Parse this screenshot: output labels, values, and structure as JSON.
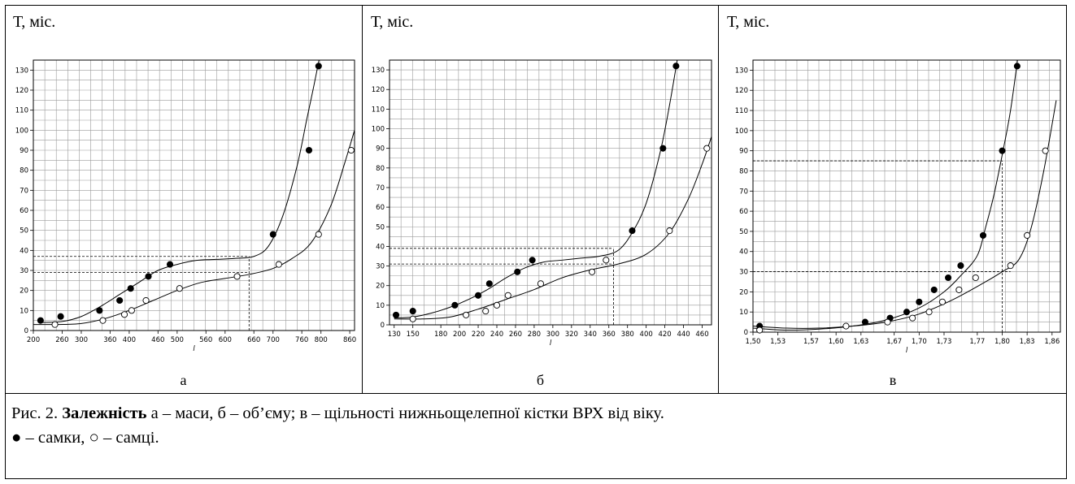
{
  "caption": {
    "line1_prefix": "Рис. 2. ",
    "line1_bold": "Залежність",
    "line1_rest": " а – маси, б – об’єму; в – щільності нижньощелепної кістки ВРХ  від віку.",
    "line2": "● – самки, ○ – самці."
  },
  "chart_data": [
    {
      "type": "scatter",
      "panel_label": "а",
      "ylabel": "Т, міс.",
      "xlabel": "l",
      "xlim": [
        200,
        870
      ],
      "ylim": [
        0,
        135
      ],
      "x_ticks": [
        "200",
        "260",
        "300",
        "360",
        "400",
        "460",
        "500",
        "560",
        "600",
        "660",
        "700",
        "760",
        "800",
        "860"
      ],
      "x_tick_values": [
        200,
        260,
        300,
        360,
        400,
        460,
        500,
        560,
        600,
        660,
        700,
        760,
        800,
        860
      ],
      "y_ticks": [
        0,
        10,
        20,
        30,
        40,
        50,
        60,
        70,
        80,
        90,
        100,
        110,
        120,
        130
      ],
      "grid": true,
      "series": [
        {
          "marker": "filled",
          "x": [
            215,
            257,
            338,
            380,
            403,
            440,
            485,
            700,
            775,
            795
          ],
          "y": [
            5,
            7,
            10,
            15,
            21,
            27,
            33,
            48,
            90,
            132
          ]
        },
        {
          "marker": "open",
          "x": [
            245,
            345,
            390,
            405,
            435,
            505,
            625,
            712,
            795,
            863
          ],
          "y": [
            3,
            5,
            8,
            10,
            15,
            21,
            27,
            33,
            48,
            90
          ]
        }
      ],
      "curves": [
        {
          "marker": "filled",
          "x": [
            215,
            260,
            300,
            340,
            380,
            420,
            460,
            500,
            540,
            580,
            620,
            660,
            690,
            720,
            750,
            770,
            785,
            800
          ],
          "y": [
            4,
            4.5,
            7,
            12,
            18,
            24,
            30,
            33,
            35,
            35.5,
            36,
            37,
            42,
            57,
            82,
            105,
            122,
            140
          ]
        },
        {
          "marker": "open",
          "x": [
            200,
            250,
            300,
            350,
            400,
            450,
            500,
            550,
            600,
            650,
            700,
            740,
            780,
            820,
            850,
            870
          ],
          "y": [
            3,
            3,
            3.5,
            6,
            10,
            15,
            20,
            24,
            26,
            28,
            31,
            36,
            44,
            62,
            84,
            100
          ]
        }
      ],
      "guides": [
        {
          "y": 37,
          "x_from": 200,
          "x_to": 650
        },
        {
          "y": 29,
          "x_from": 200,
          "x_to": 650
        },
        {
          "x": 650,
          "y_from": 0,
          "y_to": 37
        }
      ]
    },
    {
      "type": "scatter",
      "panel_label": "б",
      "ylabel": "Т, міс.",
      "xlabel": "l",
      "xlim": [
        125,
        470
      ],
      "ylim": [
        0,
        135
      ],
      "x_ticks": [
        "130",
        "150",
        "180",
        "200",
        "220",
        "240",
        "260",
        "280",
        "300",
        "320",
        "340",
        "360",
        "380",
        "400",
        "420",
        "440",
        "460"
      ],
      "x_tick_values": [
        130,
        150,
        180,
        200,
        220,
        240,
        260,
        280,
        300,
        320,
        340,
        360,
        380,
        400,
        420,
        440,
        460
      ],
      "y_ticks": [
        0,
        10,
        20,
        30,
        40,
        50,
        60,
        70,
        80,
        90,
        100,
        110,
        120,
        130
      ],
      "grid": true,
      "series": [
        {
          "marker": "filled",
          "x": [
            132,
            150,
            195,
            220,
            232,
            262,
            278,
            385,
            418,
            432
          ],
          "y": [
            5,
            7,
            10,
            15,
            21,
            27,
            33,
            48,
            90,
            132
          ]
        },
        {
          "marker": "open",
          "x": [
            150,
            207,
            228,
            240,
            252,
            287,
            342,
            357,
            425,
            465
          ],
          "y": [
            3,
            5,
            7,
            10,
            15,
            21,
            27,
            33,
            48,
            90
          ]
        }
      ],
      "curves": [
        {
          "marker": "filled",
          "x": [
            130,
            150,
            170,
            190,
            210,
            230,
            250,
            270,
            290,
            310,
            330,
            350,
            370,
            385,
            400,
            415,
            425,
            435
          ],
          "y": [
            3.5,
            4,
            6,
            9,
            13,
            18,
            24,
            29,
            32,
            33,
            34,
            35,
            38,
            47,
            62,
            88,
            112,
            140
          ]
        },
        {
          "marker": "open",
          "x": [
            130,
            160,
            190,
            220,
            250,
            280,
            310,
            340,
            370,
            400,
            425,
            445,
            460,
            470
          ],
          "y": [
            3,
            3,
            4,
            8,
            13,
            18,
            24,
            28,
            31,
            36,
            47,
            64,
            82,
            96
          ]
        }
      ],
      "guides": [
        {
          "y": 39,
          "x_from": 125,
          "x_to": 365
        },
        {
          "y": 31,
          "x_from": 125,
          "x_to": 365
        },
        {
          "x": 365,
          "y_from": 0,
          "y_to": 39
        }
      ]
    },
    {
      "type": "scatter",
      "panel_label": "в",
      "ylabel": "Т, міс.",
      "xlabel": "l",
      "xlim": [
        1.5,
        1.87
      ],
      "ylim": [
        0,
        135
      ],
      "x_ticks": [
        "1,50",
        "1,53",
        "1,57",
        "1,60",
        "1,63",
        "1,67",
        "1,70",
        "1,73",
        "1,77",
        "1,80",
        "1,83",
        "1,86"
      ],
      "x_tick_values": [
        1.5,
        1.53,
        1.57,
        1.6,
        1.63,
        1.67,
        1.7,
        1.73,
        1.77,
        1.8,
        1.83,
        1.86
      ],
      "y_ticks": [
        0,
        10,
        20,
        30,
        40,
        50,
        60,
        70,
        80,
        90,
        100,
        110,
        120,
        130
      ],
      "grid": true,
      "series": [
        {
          "marker": "filled",
          "x": [
            1.508,
            1.635,
            1.665,
            1.685,
            1.7,
            1.718,
            1.735,
            1.75,
            1.777,
            1.8,
            1.818
          ],
          "y": [
            3,
            5,
            7,
            10,
            15,
            21,
            27,
            33,
            48,
            90,
            132
          ]
        },
        {
          "marker": "open",
          "x": [
            1.508,
            1.612,
            1.662,
            1.692,
            1.712,
            1.728,
            1.748,
            1.768,
            1.81,
            1.83,
            1.852
          ],
          "y": [
            1,
            3,
            5,
            7,
            10,
            15,
            21,
            27,
            33,
            48,
            90
          ]
        }
      ],
      "curves": [
        {
          "marker": "filled",
          "x": [
            1.5,
            1.54,
            1.58,
            1.62,
            1.66,
            1.7,
            1.73,
            1.75,
            1.77,
            1.78,
            1.79,
            1.8,
            1.81,
            1.82
          ],
          "y": [
            2,
            1,
            1.5,
            3,
            6,
            12,
            20,
            28,
            38,
            52,
            68,
            88,
            110,
            140
          ]
        },
        {
          "marker": "open",
          "x": [
            1.5,
            1.54,
            1.58,
            1.62,
            1.66,
            1.7,
            1.74,
            1.78,
            1.8,
            1.82,
            1.835,
            1.85,
            1.865
          ],
          "y": [
            3,
            2,
            2,
            3,
            5,
            9,
            16,
            25,
            30,
            36,
            52,
            80,
            115
          ]
        }
      ],
      "guides": [
        {
          "y": 85,
          "x_from": 1.5,
          "x_to": 1.8
        },
        {
          "y": 30,
          "x_from": 1.5,
          "x_to": 1.81
        },
        {
          "x": 1.8,
          "y_from": 0,
          "y_to": 85
        }
      ]
    }
  ]
}
